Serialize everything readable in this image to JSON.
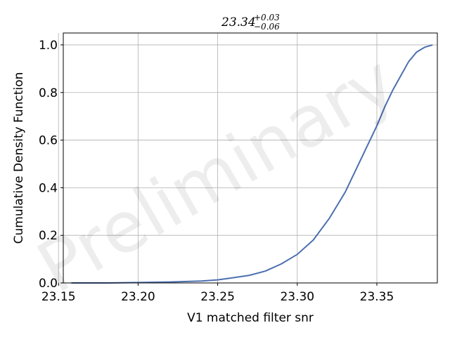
{
  "chart_data": {
    "type": "line",
    "title": {
      "base": "23.34",
      "upper": "+0.03",
      "lower": "−0.06"
    },
    "xlabel": "V1 matched filter snr",
    "ylabel": "Cumulative Density Function",
    "xlim": [
      23.153,
      23.388
    ],
    "ylim": [
      0.0,
      1.05
    ],
    "x_ticks": [
      23.15,
      23.2,
      23.25,
      23.3,
      23.35
    ],
    "x_tick_labels": [
      "23.15",
      "23.20",
      "23.25",
      "23.30",
      "23.35"
    ],
    "y_ticks": [
      0.0,
      0.2,
      0.4,
      0.6,
      0.8,
      1.0
    ],
    "y_tick_labels": [
      "0.0",
      "0.2",
      "0.4",
      "0.6",
      "0.8",
      "1.0"
    ],
    "grid": true,
    "watermark": "Preliminary",
    "series": [
      {
        "color": "#4c6faf",
        "x": [
          23.158,
          23.18,
          23.2,
          23.22,
          23.24,
          23.25,
          23.26,
          23.27,
          23.28,
          23.29,
          23.3,
          23.31,
          23.32,
          23.33,
          23.34,
          23.35,
          23.355,
          23.36,
          23.365,
          23.37,
          23.375,
          23.38,
          23.385
        ],
        "y": [
          0.0,
          0.0,
          0.002,
          0.004,
          0.008,
          0.013,
          0.022,
          0.032,
          0.05,
          0.08,
          0.12,
          0.18,
          0.27,
          0.38,
          0.52,
          0.66,
          0.74,
          0.81,
          0.87,
          0.93,
          0.97,
          0.99,
          1.0
        ]
      }
    ]
  }
}
